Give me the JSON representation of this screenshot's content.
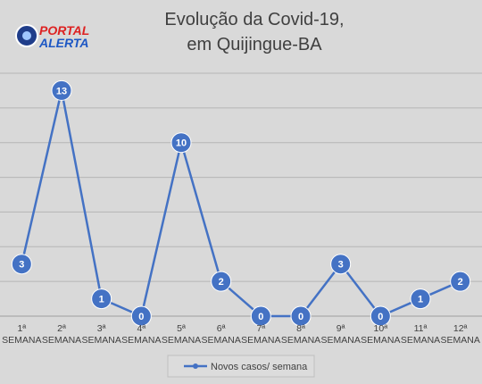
{
  "logo": {
    "top": "PORTAL",
    "bottom": "ALERTA"
  },
  "chart_data": {
    "type": "line",
    "title": "Evolução da Covid-19,\nem Quijingue-BA",
    "categories": [
      "1ª\nSEMANA",
      "2ª\nSEMANA",
      "3ª\nSEMANA",
      "4ª\nSEMANA",
      "5ª\nSEMANA",
      "6ª\nSEMANA",
      "7ª\nSEMANA",
      "8ª\nSEMANA",
      "9ª\nSEMANA",
      "10ª\nSEMANA",
      "11ª\nSEMANA",
      "12ª\nSEMANA"
    ],
    "series": [
      {
        "name": "Novos casos/ semana",
        "color": "#4472c4",
        "values": [
          3,
          13,
          1,
          0,
          10,
          2,
          0,
          0,
          3,
          0,
          1,
          2
        ]
      }
    ],
    "ylim": [
      0,
      14
    ],
    "yticks": [
      0,
      2,
      4,
      6,
      8,
      10,
      12,
      14
    ],
    "grid": true,
    "legend": "bottom"
  }
}
